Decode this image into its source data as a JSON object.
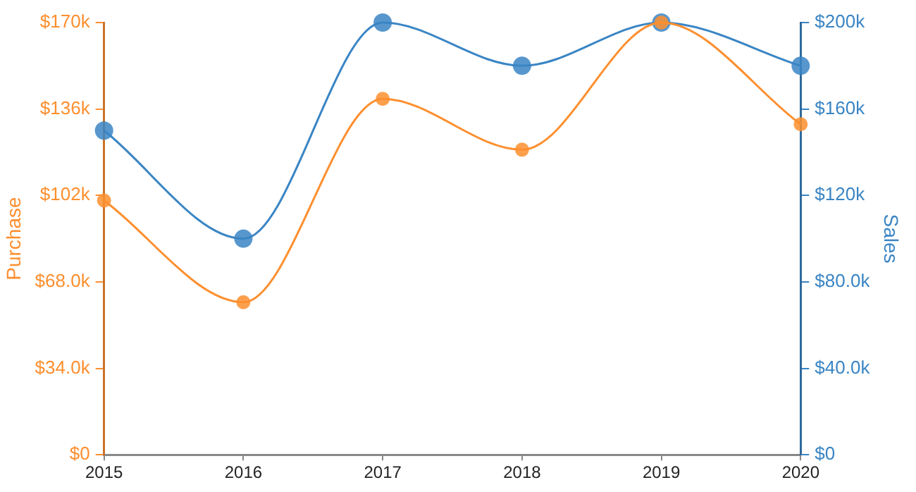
{
  "chart_data": {
    "type": "line",
    "ylabel": "Purchase",
    "y2label": "Sales",
    "categories": [
      "2015",
      "2016",
      "2017",
      "2018",
      "2019",
      "2020"
    ],
    "series": [
      {
        "color": "#fd8f2f",
        "values": [
          100000,
          60000,
          140000,
          120000,
          170000,
          130000
        ]
      },
      {
        "color": "#3a85c4",
        "axis": "y2",
        "values": [
          150000,
          100000,
          200000,
          180000,
          200000,
          180000
        ]
      }
    ],
    "ylim": [
      0,
      170000
    ],
    "yticks": [
      {
        "value": 0,
        "label": "$0"
      },
      {
        "value": 34000,
        "label": "$34.0k"
      },
      {
        "value": 68000,
        "label": "$68.0k"
      },
      {
        "value": 102000,
        "label": "$102k"
      },
      {
        "value": 136000,
        "label": "$136k"
      },
      {
        "value": 170000,
        "label": "$170k"
      }
    ],
    "y2lim": [
      0,
      200000
    ],
    "y2ticks": [
      {
        "value": 0,
        "label": "$0"
      },
      {
        "value": 40000,
        "label": "$40.0k"
      },
      {
        "value": 80000,
        "label": "$80.0k"
      },
      {
        "value": 120000,
        "label": "$120k"
      },
      {
        "value": 160000,
        "label": "$160k"
      },
      {
        "value": 200000,
        "label": "$200k"
      }
    ],
    "grid": false,
    "legend": false,
    "marker": "circle",
    "line_style": "solid"
  }
}
